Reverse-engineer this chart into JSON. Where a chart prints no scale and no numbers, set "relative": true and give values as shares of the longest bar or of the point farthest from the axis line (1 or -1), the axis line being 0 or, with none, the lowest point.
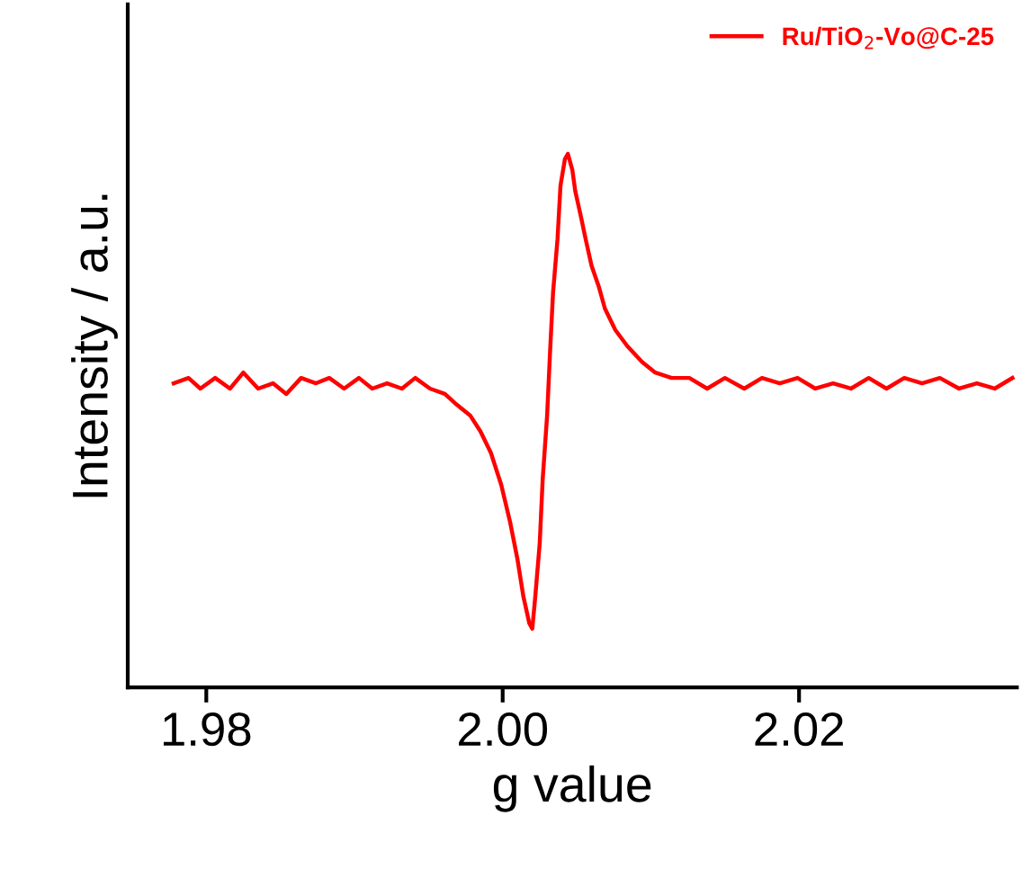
{
  "chart_data": {
    "type": "line",
    "relative": true,
    "xlabel": "g value",
    "ylabel": "Intensity / a.u.",
    "xlim": [
      1.9747,
      2.0347
    ],
    "xticks": [
      {
        "value": 1.98,
        "label": "1.98"
      },
      {
        "value": 2.0,
        "label": "2.00"
      },
      {
        "value": 2.02,
        "label": "2.02"
      }
    ],
    "grid": false,
    "legend": "top right",
    "marker": "none",
    "line_style": "solid",
    "series": [
      {
        "name": "Ru/TiO$_{2}$-Vo@C-25",
        "color": "#ff0000",
        "x": [
          1.9778,
          1.9788,
          1.9796,
          1.9806,
          1.9816,
          1.9825,
          1.9835,
          1.9845,
          1.9854,
          1.9864,
          1.9874,
          1.9883,
          1.9893,
          1.9903,
          1.9912,
          1.9922,
          1.9932,
          1.9941,
          1.9951,
          1.9961,
          1.9969,
          1.9978,
          1.9985,
          1.9992,
          1.9999,
          2.0005,
          2.001,
          2.0014,
          2.0018,
          2.002,
          2.0022,
          2.0025,
          2.0027,
          2.003,
          2.0032,
          2.0034,
          2.0037,
          2.0039,
          2.0042,
          2.0044,
          2.0047,
          2.0049,
          2.0053,
          2.0056,
          2.006,
          2.0065,
          2.0069,
          2.0076,
          2.0084,
          2.0094,
          2.0103,
          2.0114,
          2.0126,
          2.0138,
          2.015,
          2.0163,
          2.0175,
          2.0187,
          2.0199,
          2.0211,
          2.0223,
          2.0235,
          2.0247,
          2.0259,
          2.0271,
          2.0283,
          2.0295,
          2.0308,
          2.032,
          2.0332,
          2.0344
        ],
        "values": [
          0.57,
          0.58,
          0.56,
          0.58,
          0.56,
          0.59,
          0.56,
          0.57,
          0.55,
          0.58,
          0.57,
          0.58,
          0.56,
          0.58,
          0.56,
          0.57,
          0.56,
          0.58,
          0.56,
          0.55,
          0.53,
          0.51,
          0.48,
          0.44,
          0.38,
          0.31,
          0.24,
          0.17,
          0.12,
          0.11,
          0.17,
          0.27,
          0.39,
          0.51,
          0.63,
          0.74,
          0.84,
          0.94,
          0.99,
          1,
          0.97,
          0.93,
          0.88,
          0.84,
          0.79,
          0.75,
          0.71,
          0.67,
          0.64,
          0.61,
          0.59,
          0.58,
          0.58,
          0.56,
          0.58,
          0.56,
          0.58,
          0.57,
          0.58,
          0.56,
          0.57,
          0.56,
          0.58,
          0.56,
          0.58,
          0.57,
          0.58,
          0.56,
          0.57,
          0.56,
          0.58
        ]
      }
    ]
  }
}
